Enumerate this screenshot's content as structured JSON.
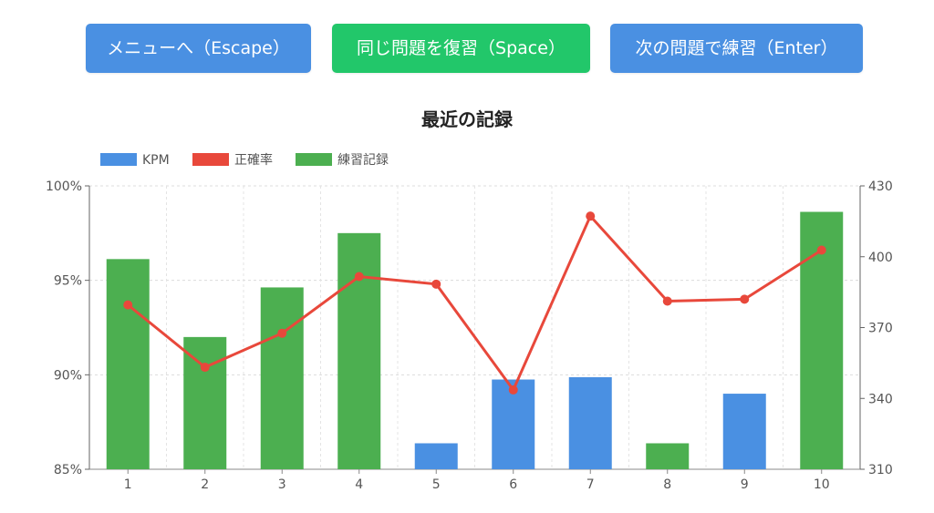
{
  "buttons": {
    "menu": "メニューへ（Escape）",
    "retry": "同じ問題を復習（Space）",
    "next": "次の問題で練習（Enter）"
  },
  "colors": {
    "menu_button": "#4a90e2",
    "retry_button": "#22c76a",
    "next_button": "#4a90e2",
    "kpm": "#4a90e2",
    "accuracy": "#e8483b",
    "practice": "#4caf50"
  },
  "chart_data": {
    "type": "bar+line",
    "title": "最近の記録",
    "legend_position": "top-left",
    "legend": [
      "KPM",
      "正確率",
      "練習記録"
    ],
    "grid": true,
    "categories": [
      "1",
      "2",
      "3",
      "4",
      "5",
      "6",
      "7",
      "8",
      "9",
      "10"
    ],
    "y_left": {
      "min": 85,
      "max": 100,
      "ticks": [
        "85%",
        "90%",
        "95%",
        "100%"
      ],
      "tick_values": [
        85,
        90,
        95,
        100
      ]
    },
    "y_right": {
      "min": 310,
      "max": 430,
      "ticks": [
        "310",
        "340",
        "370",
        "400",
        "430"
      ],
      "tick_values": [
        310,
        340,
        370,
        400,
        430
      ]
    },
    "bars": {
      "axis": "right",
      "values": [
        399,
        366,
        387,
        410,
        321,
        348,
        349,
        321,
        342,
        419
      ],
      "series": [
        "練習記録",
        "練習記録",
        "練習記録",
        "練習記録",
        "KPM",
        "KPM",
        "KPM",
        "練習記録",
        "KPM",
        "練習記録"
      ]
    },
    "line": {
      "name": "正確率",
      "axis": "left",
      "values": [
        93.7,
        90.4,
        92.2,
        95.2,
        94.8,
        89.2,
        98.4,
        93.9,
        94.0,
        96.6
      ]
    }
  }
}
